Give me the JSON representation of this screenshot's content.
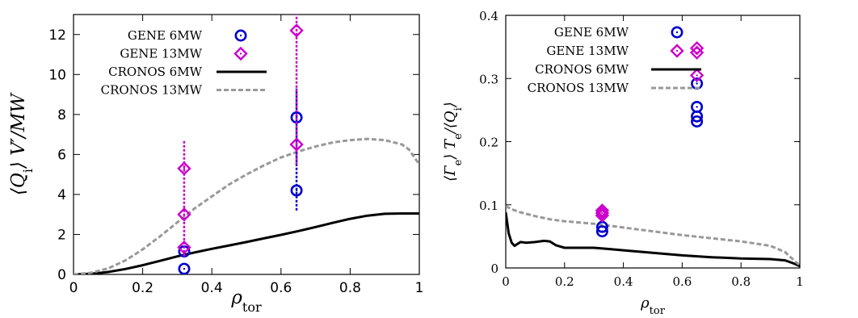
{
  "chart_data": [
    {
      "type": "scatter",
      "xlabel": "ρ_tor",
      "ylabel": "⟨Q_i⟩ V′/MW",
      "xlim": [
        0,
        1
      ],
      "ylim": [
        0,
        13
      ],
      "xticks": [
        "0",
        "0.2",
        "0.4",
        "0.6",
        "0.8",
        "1"
      ],
      "yticks": [
        "0",
        "2",
        "4",
        "6",
        "8",
        "10",
        "12"
      ],
      "grid": false,
      "legend_position": "top-left",
      "series": [
        {
          "name": "GENE 6MW",
          "kind": "markers",
          "marker": "circle",
          "color": "#0000cc",
          "points": [
            [
              0.32,
              0.28
            ],
            [
              0.32,
              1.15
            ],
            [
              0.645,
              4.2
            ],
            [
              0.645,
              7.85
            ]
          ],
          "errorbars": [
            [
              0.645,
              3.2,
              9.3
            ]
          ]
        },
        {
          "name": "GENE 13MW",
          "kind": "markers",
          "marker": "diamond",
          "color": "#cc00cc",
          "points": [
            [
              0.32,
              1.35
            ],
            [
              0.32,
              3.0
            ],
            [
              0.32,
              5.3
            ],
            [
              0.645,
              6.5
            ],
            [
              0.645,
              12.2
            ]
          ],
          "errorbars": [
            [
              0.32,
              0.9,
              6.7
            ],
            [
              0.645,
              5.5,
              13.0
            ]
          ]
        },
        {
          "name": "CRONOS 6MW",
          "kind": "line",
          "style": "solid",
          "color": "#000000",
          "x": [
            0,
            0.05,
            0.1,
            0.15,
            0.2,
            0.25,
            0.3,
            0.35,
            0.4,
            0.45,
            0.5,
            0.55,
            0.6,
            0.65,
            0.7,
            0.75,
            0.8,
            0.85,
            0.9,
            0.95,
            1.0
          ],
          "y": [
            0,
            0.03,
            0.12,
            0.27,
            0.46,
            0.68,
            0.9,
            1.1,
            1.28,
            1.45,
            1.62,
            1.8,
            1.98,
            2.17,
            2.37,
            2.58,
            2.78,
            2.94,
            3.03,
            3.05,
            3.05
          ]
        },
        {
          "name": "CRONOS 13MW",
          "kind": "line",
          "style": "dashed",
          "color": "#999999",
          "x": [
            0,
            0.05,
            0.1,
            0.15,
            0.2,
            0.25,
            0.3,
            0.35,
            0.4,
            0.45,
            0.5,
            0.55,
            0.6,
            0.65,
            0.7,
            0.75,
            0.8,
            0.85,
            0.9,
            0.95,
            0.97,
            1.0
          ],
          "y": [
            0,
            0.08,
            0.3,
            0.7,
            1.25,
            1.9,
            2.6,
            3.3,
            3.9,
            4.5,
            5.0,
            5.45,
            5.85,
            6.15,
            6.4,
            6.6,
            6.72,
            6.78,
            6.72,
            6.5,
            6.25,
            5.5
          ]
        }
      ]
    },
    {
      "type": "scatter",
      "xlabel": "ρ_tor",
      "ylabel": "⟨Γ_e⟩ T_e/⟨Q_i⟩",
      "xlim": [
        0,
        1
      ],
      "ylim": [
        0,
        0.4
      ],
      "xticks": [
        "0",
        "0.2",
        "0.4",
        "0.6",
        "0.8",
        "1"
      ],
      "yticks": [
        "0",
        "0.1",
        "0.2",
        "0.3",
        "0.4"
      ],
      "grid": false,
      "legend_position": "top-left",
      "series": [
        {
          "name": "GENE 6MW",
          "kind": "markers",
          "marker": "circle",
          "color": "#0000cc",
          "points": [
            [
              0.328,
              0.058
            ],
            [
              0.328,
              0.065
            ],
            [
              0.65,
              0.232
            ],
            [
              0.65,
              0.24
            ],
            [
              0.65,
              0.255
            ],
            [
              0.65,
              0.292
            ]
          ],
          "errorbars": []
        },
        {
          "name": "GENE 13MW",
          "kind": "markers",
          "marker": "diamond",
          "color": "#cc00cc",
          "points": [
            [
              0.328,
              0.083
            ],
            [
              0.328,
              0.087
            ],
            [
              0.328,
              0.091
            ],
            [
              0.65,
              0.305
            ],
            [
              0.65,
              0.341
            ],
            [
              0.65,
              0.348
            ]
          ],
          "errorbars": []
        },
        {
          "name": "CRONOS 6MW",
          "kind": "line",
          "style": "solid",
          "color": "#000000",
          "x": [
            0,
            0.01,
            0.02,
            0.03,
            0.05,
            0.07,
            0.1,
            0.13,
            0.15,
            0.17,
            0.2,
            0.25,
            0.3,
            0.35,
            0.4,
            0.5,
            0.6,
            0.7,
            0.8,
            0.9,
            0.95,
            0.98,
            1.0
          ],
          "y": [
            0.088,
            0.055,
            0.04,
            0.035,
            0.041,
            0.04,
            0.041,
            0.043,
            0.042,
            0.036,
            0.032,
            0.032,
            0.032,
            0.03,
            0.028,
            0.024,
            0.02,
            0.017,
            0.015,
            0.014,
            0.012,
            0.007,
            0.003
          ]
        },
        {
          "name": "CRONOS 13MW",
          "kind": "line",
          "style": "dashed",
          "color": "#999999",
          "x": [
            0,
            0.02,
            0.05,
            0.1,
            0.15,
            0.2,
            0.3,
            0.4,
            0.5,
            0.6,
            0.7,
            0.8,
            0.9,
            0.95,
            0.98,
            1.0
          ],
          "y": [
            0.098,
            0.093,
            0.088,
            0.082,
            0.077,
            0.074,
            0.07,
            0.064,
            0.058,
            0.052,
            0.047,
            0.042,
            0.035,
            0.025,
            0.012,
            0.004
          ]
        }
      ]
    }
  ]
}
